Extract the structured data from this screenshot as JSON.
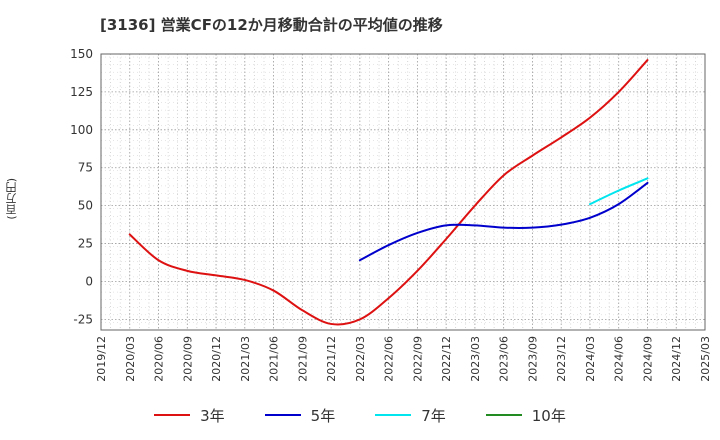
{
  "chart_data": {
    "type": "line",
    "title": "[3136]  営業CFの12か月移動合計の平均値の推移",
    "ylabel": "(百万円)",
    "ylim": [
      -32,
      150
    ],
    "yticks": [
      150,
      125,
      100,
      75,
      50,
      25,
      0,
      -25
    ],
    "x_categories": [
      "2019/12",
      "2020/03",
      "2020/06",
      "2020/09",
      "2020/12",
      "2021/03",
      "2021/06",
      "2021/09",
      "2021/12",
      "2022/03",
      "2022/06",
      "2022/09",
      "2022/12",
      "2023/03",
      "2023/06",
      "2023/09",
      "2023/12",
      "2024/03",
      "2024/06",
      "2024/09",
      "2024/12",
      "2025/03"
    ],
    "grid": true,
    "legend_position": "bottom",
    "series": [
      {
        "name": "3年",
        "color": "#dd1111",
        "x": [
          "2020/03",
          "2020/06",
          "2020/09",
          "2020/12",
          "2021/03",
          "2021/06",
          "2021/09",
          "2021/12",
          "2022/03",
          "2022/06",
          "2022/09",
          "2022/12",
          "2023/03",
          "2023/06",
          "2023/09",
          "2023/12",
          "2024/03",
          "2024/06",
          "2024/09"
        ],
        "values": [
          31,
          14,
          7,
          4,
          1,
          -6,
          -19,
          -28,
          -25,
          -11,
          7,
          28,
          50,
          70,
          83,
          95,
          108,
          125,
          146
        ]
      },
      {
        "name": "5年",
        "color": "#0000cc",
        "x": [
          "2022/03",
          "2022/06",
          "2022/09",
          "2022/12",
          "2023/03",
          "2023/06",
          "2023/09",
          "2023/12",
          "2024/03",
          "2024/06",
          "2024/09"
        ],
        "values": [
          14,
          24,
          32,
          37,
          37,
          35.5,
          35.5,
          37.5,
          42,
          51,
          65
        ]
      },
      {
        "name": "7年",
        "color": "#00e5ee",
        "x": [
          "2024/03",
          "2024/06",
          "2024/09"
        ],
        "values": [
          51,
          60,
          68
        ]
      },
      {
        "name": "10年",
        "color": "#228b22",
        "x": [],
        "values": []
      }
    ]
  }
}
